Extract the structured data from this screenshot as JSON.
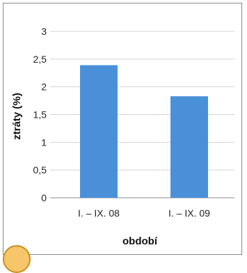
{
  "chart_data": {
    "type": "bar",
    "categories": [
      "I. – IX. 08",
      "I. – IX. 09"
    ],
    "values": [
      2.39,
      1.83
    ],
    "xlabel": "období",
    "ylabel": "ztráty (%)",
    "ylim": [
      0,
      3
    ],
    "yticks": [
      "0",
      "0,5",
      "1",
      "1,5",
      "2",
      "2,5",
      "3"
    ],
    "grid": true,
    "bar_color": "#4a90d9"
  },
  "decor": {
    "badge_icon": "orange-circle-badge-icon"
  }
}
